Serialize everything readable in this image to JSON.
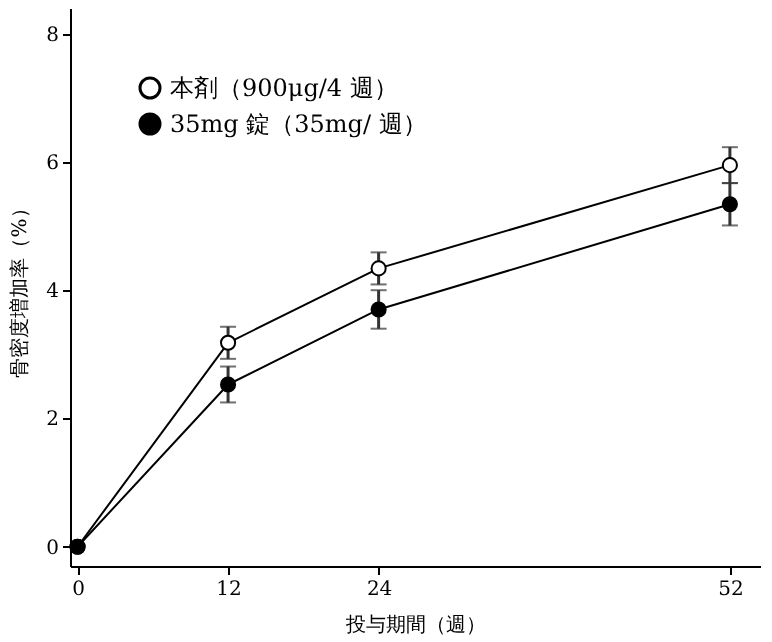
{
  "chart_data": {
    "type": "line",
    "xlabel": "投与期間（週）",
    "ylabel": "骨密度増加率（%）",
    "x": [
      0,
      12,
      24,
      52
    ],
    "series": [
      {
        "name": "本剤（900μg/4 週）",
        "color": "#000000",
        "values": [
          0,
          3.18,
          4.34,
          5.95
        ],
        "errors": [
          null,
          0.25,
          0.25,
          0.28
        ]
      },
      {
        "name": "35mg 錠（35mg/ 週）",
        "color": "#000000",
        "values": [
          0,
          2.53,
          3.7,
          5.34
        ],
        "errors": [
          null,
          0.28,
          0.3,
          0.33
        ]
      }
    ],
    "xlim": [
      -0.6,
      54.4
    ],
    "xticks": [
      0,
      12,
      24,
      52
    ],
    "ylim": [
      -0.3,
      8.4
    ],
    "yticks": [
      0,
      2,
      4,
      6,
      8
    ],
    "marker": "circle",
    "line_style": "solid",
    "legend": "top left",
    "grid": false
  }
}
